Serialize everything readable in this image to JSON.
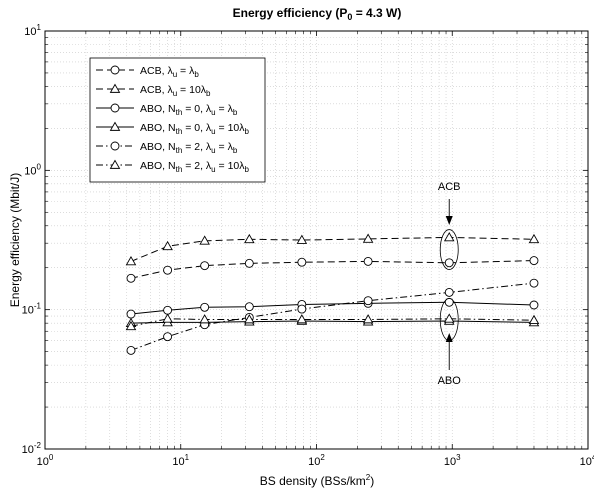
{
  "chart_data": {
    "type": "line",
    "title": "Energy efficiency (P_0 = 4.3 W)",
    "xlabel": "BS density (BSs/km^2)",
    "ylabel": "Energy efficiency (Mbit/J)",
    "x_scale": "log",
    "y_scale": "log",
    "xlim": [
      1,
      10000
    ],
    "ylim": [
      0.01,
      10
    ],
    "x_ticks": [
      1,
      10,
      100,
      1000,
      10000
    ],
    "y_ticks": [
      0.01,
      0.1,
      1,
      10
    ],
    "x_tick_labels": [
      {
        "base": "10",
        "exp": "0"
      },
      {
        "base": "10",
        "exp": "1"
      },
      {
        "base": "10",
        "exp": "2"
      },
      {
        "base": "10",
        "exp": "3"
      },
      {
        "base": "10",
        "exp": "4"
      }
    ],
    "y_tick_labels": [
      {
        "base": "10",
        "exp": "-2"
      },
      {
        "base": "10",
        "exp": "-1"
      },
      {
        "base": "10",
        "exp": "0"
      },
      {
        "base": "10",
        "exp": "1"
      }
    ],
    "grid": true,
    "legend_position": "top-left",
    "x": [
      4.3,
      8,
      15,
      32,
      78,
      240,
      950,
      4000
    ],
    "series": [
      {
        "name": "ACB, λu = λb",
        "style": "dashed",
        "marker": "circle",
        "values": [
          0.168,
          0.192,
          0.207,
          0.215,
          0.219,
          0.222,
          0.217,
          0.225
        ]
      },
      {
        "name": "ACB, λu = 10λb",
        "style": "dashed",
        "marker": "triangle",
        "values": [
          0.222,
          0.285,
          0.312,
          0.32,
          0.316,
          0.322,
          0.33,
          0.32
        ]
      },
      {
        "name": "ABO, Nth = 0, λu = λb",
        "style": "solid",
        "marker": "circle",
        "values": [
          0.093,
          0.099,
          0.104,
          0.105,
          0.109,
          0.111,
          0.113,
          0.108
        ]
      },
      {
        "name": "ABO, Nth = 0, λu = 10λb",
        "style": "solid",
        "marker": "triangle",
        "values": [
          0.08,
          0.081,
          0.081,
          0.082,
          0.083,
          0.082,
          0.083,
          0.081
        ]
      },
      {
        "name": "ABO, Nth = 2, λu = λb",
        "style": "dashdot",
        "marker": "circle",
        "values": [
          0.051,
          0.064,
          0.078,
          0.088,
          0.101,
          0.116,
          0.133,
          0.155
        ]
      },
      {
        "name": "ABO, Nth = 2, λu = 10λb",
        "style": "dashdot",
        "marker": "triangle",
        "values": [
          0.076,
          0.086,
          0.085,
          0.085,
          0.085,
          0.085,
          0.086,
          0.084
        ]
      }
    ],
    "annotations": [
      {
        "text": "ACB",
        "x": 950,
        "y_center": 0.27,
        "arrow": "down"
      },
      {
        "text": "ABO",
        "x": 950,
        "y_center": 0.085,
        "arrow": "up"
      }
    ]
  }
}
